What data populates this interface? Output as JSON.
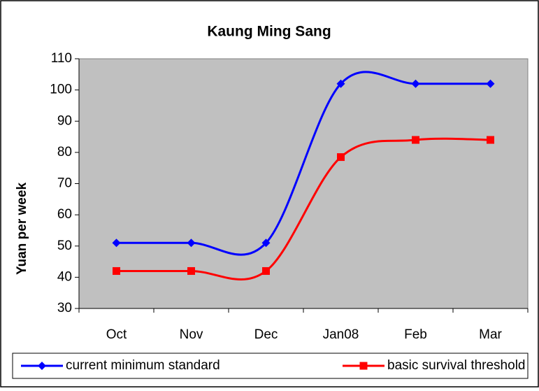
{
  "chart_data": {
    "type": "line",
    "title": "Kaung Ming Sang",
    "y_label": "Yuan per week",
    "categories": [
      "Oct",
      "Nov",
      "Dec",
      "Jan08",
      "Feb",
      "Mar"
    ],
    "series": [
      {
        "name": "current minimum standard",
        "color": "#0000ff",
        "marker": "diamond",
        "values": [
          51,
          51,
          51,
          102,
          102,
          102
        ]
      },
      {
        "name": "basic survival threshold",
        "color": "#ff0000",
        "marker": "square",
        "values": [
          42,
          42,
          42,
          78.5,
          84,
          84
        ]
      }
    ],
    "ylim": [
      30,
      110
    ],
    "yticks": [
      30,
      40,
      50,
      60,
      70,
      80,
      90,
      100,
      110
    ],
    "grid": false,
    "smooth": true,
    "legend": "bottom"
  }
}
